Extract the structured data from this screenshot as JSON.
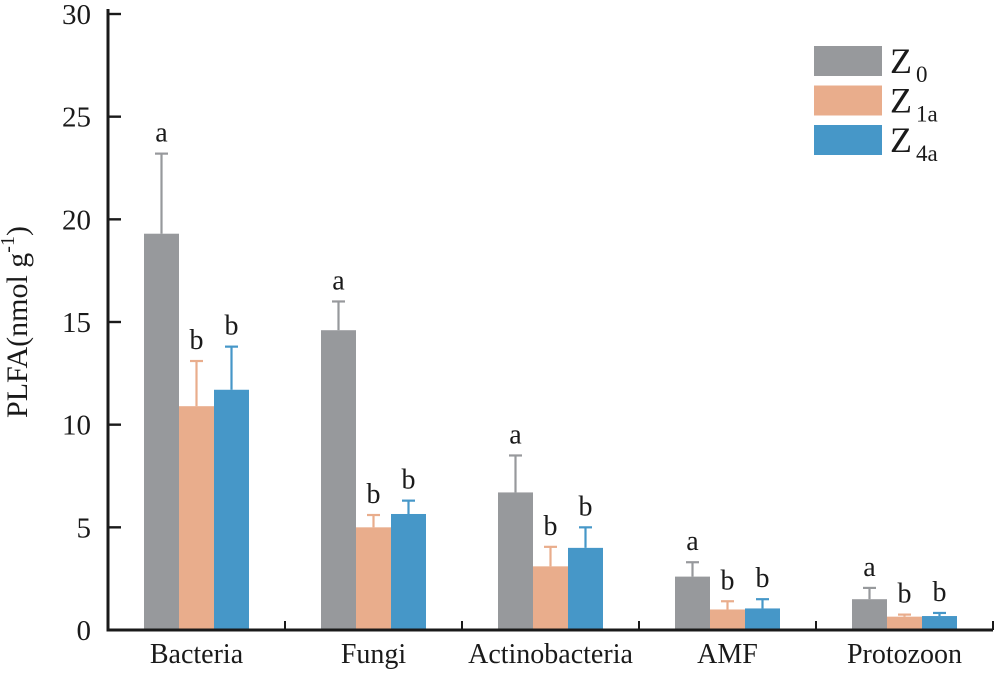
{
  "chart_data": {
    "type": "bar",
    "title": "",
    "xlabel": "",
    "ylabel": "PLFA(nmol g⁻¹)",
    "ylabel_parts": {
      "main": "PLFA(nmol g",
      "sup": "-1",
      "close": ")"
    },
    "ylim": [
      0,
      30
    ],
    "yticks": [
      0,
      5,
      10,
      15,
      20,
      25,
      30
    ],
    "grid": false,
    "legend_position": "top-right",
    "axis_color": "#1a1a1a",
    "categories": [
      "Bacteria",
      "Fungi",
      "Actinobacteria",
      "AMF",
      "Protozoon"
    ],
    "series": [
      {
        "name": "Z0",
        "legend": {
          "base": "Z",
          "sub": "0"
        },
        "color": "#97999C",
        "values": [
          19.3,
          14.6,
          6.7,
          2.6,
          1.5
        ],
        "errors": [
          3.9,
          1.4,
          1.8,
          0.7,
          0.55
        ],
        "letters": [
          "a",
          "a",
          "a",
          "a",
          "a"
        ]
      },
      {
        "name": "Z1a",
        "legend": {
          "base": "Z",
          "sub": "1a"
        },
        "color": "#E9AD8C",
        "values": [
          10.9,
          5.0,
          3.1,
          1.0,
          0.65
        ],
        "errors": [
          2.2,
          0.6,
          0.95,
          0.4,
          0.1
        ],
        "letters": [
          "b",
          "b",
          "b",
          "b",
          "b"
        ]
      },
      {
        "name": "Z4a",
        "legend": {
          "base": "Z",
          "sub": "4a"
        },
        "color": "#4697C8",
        "values": [
          11.7,
          5.65,
          4.0,
          1.05,
          0.68
        ],
        "errors": [
          2.1,
          0.65,
          1.0,
          0.45,
          0.15
        ],
        "letters": [
          "b",
          "b",
          "b",
          "b",
          "b"
        ]
      }
    ]
  }
}
